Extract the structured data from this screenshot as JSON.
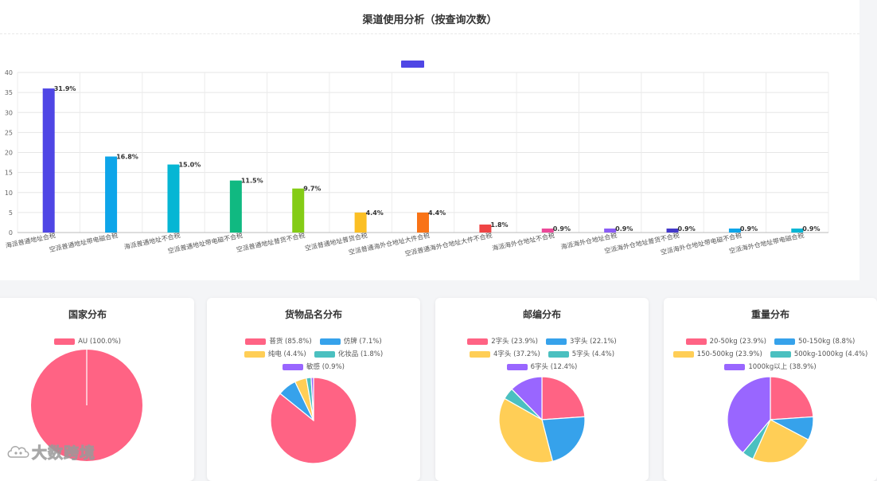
{
  "top_chart": {
    "title": "渠道使用分析（按查询次数）"
  },
  "chart_data": [
    {
      "type": "bar",
      "title": "渠道使用分析（按查询次数）",
      "categories": [
        "海派普通地址合税",
        "空派普通地址带电磁合税",
        "海派普通地址不合税",
        "空派普通地址带电磁不合税",
        "空派普通地址普货不合税",
        "空派普通地址普货合税",
        "空派普通海外仓地址大件合税",
        "空派普通海外仓地址大件不合税",
        "海派海外仓地址不合税",
        "海派海外仓地址合税",
        "空派海外仓地址普货不合税",
        "空派海外仓地址带电磁不合税",
        "空派海外仓地址带电磁合税"
      ],
      "values": [
        36,
        19,
        17,
        13,
        11,
        5,
        5,
        2,
        1,
        1,
        1,
        1,
        1
      ],
      "data_labels": [
        "31.9%",
        "16.8%",
        "15.0%",
        "11.5%",
        "9.7%",
        "4.4%",
        "4.4%",
        "1.8%",
        "0.9%",
        "0.9%",
        "0.9%",
        "0.9%",
        "0.9%"
      ],
      "colors": [
        "#4f46e5",
        "#0ea5e9",
        "#06b6d4",
        "#10b981",
        "#84cc16",
        "#fbbf24",
        "#f97316",
        "#ef4444",
        "#ec4899",
        "#8b5cf6",
        "#4338ca",
        "#0ea5e9",
        "#06b6d4"
      ],
      "yticks": [
        0,
        5,
        10,
        15,
        20,
        25,
        30,
        35,
        40
      ],
      "ylim": [
        0,
        40
      ],
      "legend_color": "#4f46e5",
      "grid": true
    },
    {
      "type": "pie",
      "title": "国家分布",
      "series": [
        {
          "name": "AU",
          "label": "AU (100.0%)",
          "value": 100.0,
          "color": "#ff6384"
        }
      ]
    },
    {
      "type": "pie",
      "title": "货物品名分布",
      "series": [
        {
          "name": "普货",
          "label": "普货 (85.8%)",
          "value": 85.8,
          "color": "#ff6384"
        },
        {
          "name": "仿牌",
          "label": "仿牌 (7.1%)",
          "value": 7.1,
          "color": "#36a2eb"
        },
        {
          "name": "纯电",
          "label": "纯电 (4.4%)",
          "value": 4.4,
          "color": "#ffce56"
        },
        {
          "name": "化妆品",
          "label": "化妆品 (1.8%)",
          "value": 1.8,
          "color": "#4bc0c0"
        },
        {
          "name": "敏感",
          "label": "敏感 (0.9%)",
          "value": 0.9,
          "color": "#9966ff"
        }
      ]
    },
    {
      "type": "pie",
      "title": "邮编分布",
      "series": [
        {
          "name": "2字头",
          "label": "2字头 (23.9%)",
          "value": 23.9,
          "color": "#ff6384"
        },
        {
          "name": "3字头",
          "label": "3字头 (22.1%)",
          "value": 22.1,
          "color": "#36a2eb"
        },
        {
          "name": "4字头",
          "label": "4字头 (37.2%)",
          "value": 37.2,
          "color": "#ffce56"
        },
        {
          "name": "5字头",
          "label": "5字头 (4.4%)",
          "value": 4.4,
          "color": "#4bc0c0"
        },
        {
          "name": "6字头",
          "label": "6字头 (12.4%)",
          "value": 12.4,
          "color": "#9966ff"
        }
      ]
    },
    {
      "type": "pie",
      "title": "重量分布",
      "series": [
        {
          "name": "20-50kg",
          "label": "20-50kg (23.9%)",
          "value": 23.9,
          "color": "#ff6384"
        },
        {
          "name": "50-150kg",
          "label": "50-150kg (8.8%)",
          "value": 8.8,
          "color": "#36a2eb"
        },
        {
          "name": "150-500kg",
          "label": "150-500kg (23.9%)",
          "value": 23.9,
          "color": "#ffce56"
        },
        {
          "name": "500kg-1000kg",
          "label": "500kg-1000kg (4.4%)",
          "value": 4.4,
          "color": "#4bc0c0"
        },
        {
          "name": "1000kg以上",
          "label": "1000kg以上 (38.9%)",
          "value": 38.9,
          "color": "#9966ff"
        }
      ]
    }
  ],
  "watermark": {
    "text": "大数跨境",
    "icon": "cloud-logo-icon"
  }
}
